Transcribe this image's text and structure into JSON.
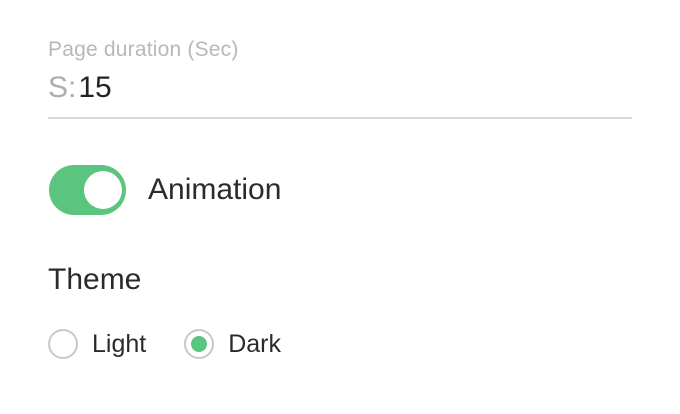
{
  "page_duration": {
    "label": "Page duration (Sec)",
    "prefix": "S:",
    "value": "15"
  },
  "animation": {
    "label": "Animation",
    "enabled": true
  },
  "theme": {
    "heading": "Theme",
    "options": [
      {
        "label": "Light",
        "selected": false
      },
      {
        "label": "Dark",
        "selected": true
      }
    ]
  },
  "colors": {
    "accent_green": "#5bc47e",
    "label_gray": "#b7b7bd",
    "prefix_gray": "#adadb4",
    "text_dark": "#2b2b2f",
    "divider_gray": "#d8d8d8",
    "radio_border_gray": "#c8c8cd"
  }
}
